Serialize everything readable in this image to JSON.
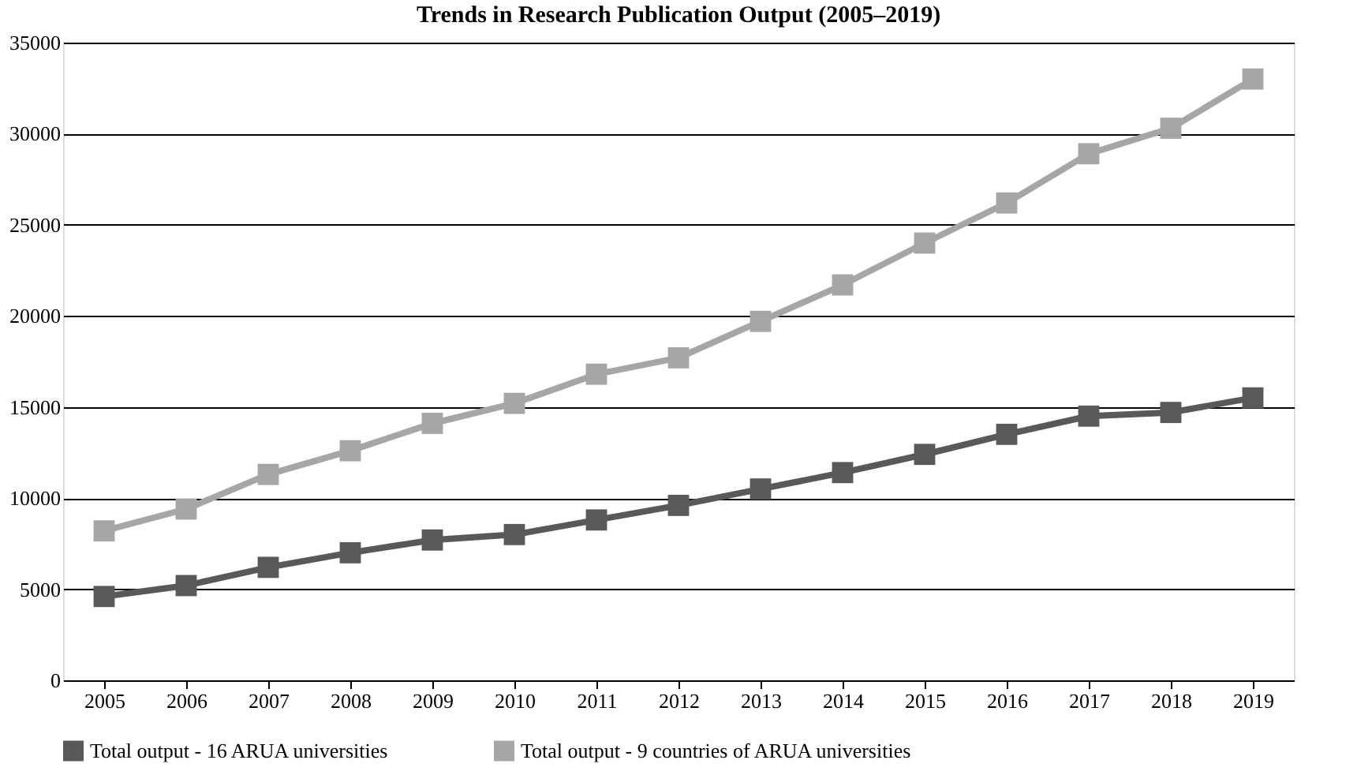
{
  "chart_data": {
    "type": "line",
    "title": "Trends in Research Publication Output (2005–2019)",
    "categories": [
      "2005",
      "2006",
      "2007",
      "2008",
      "2009",
      "2010",
      "2011",
      "2012",
      "2013",
      "2014",
      "2015",
      "2016",
      "2017",
      "2018",
      "2019"
    ],
    "series": [
      {
        "name": "Total output - 16 ARUA universities",
        "color": "#595959",
        "values": [
          4600,
          5200,
          6200,
          7000,
          7700,
          8000,
          8800,
          9600,
          10500,
          11400,
          12400,
          13500,
          14500,
          14700,
          15500
        ]
      },
      {
        "name": "Total output - 9 countries of ARUA universities",
        "color": "#a6a6a6",
        "values": [
          8200,
          9400,
          11300,
          12600,
          14100,
          15200,
          16800,
          17700,
          19700,
          21700,
          24000,
          26200,
          28900,
          30300,
          33000
        ]
      }
    ],
    "ylim": [
      0,
      35000
    ],
    "yticks": [
      0,
      5000,
      10000,
      15000,
      20000,
      25000,
      30000,
      35000
    ],
    "grid": "y",
    "legend": "bottom",
    "marker": "square",
    "line_style": "solid"
  }
}
